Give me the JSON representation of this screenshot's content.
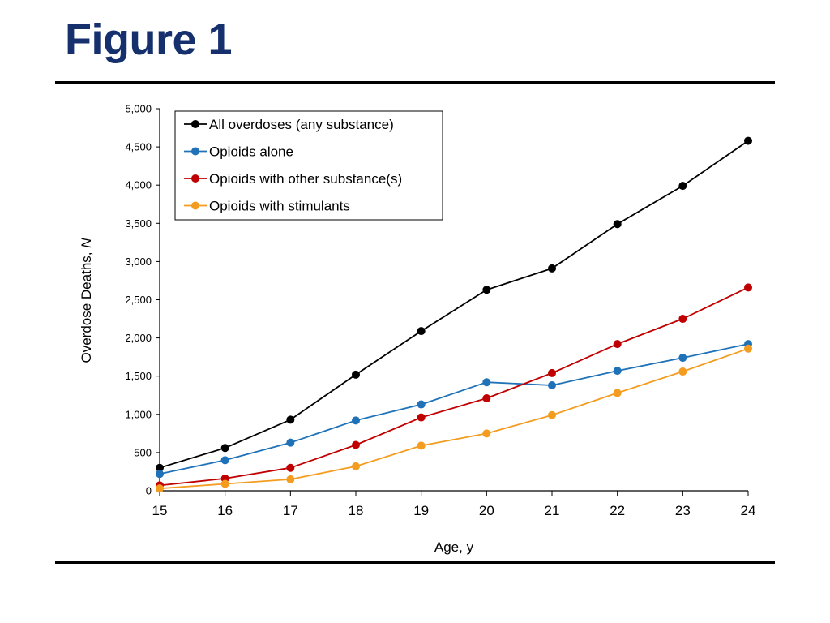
{
  "title": "Figure 1",
  "chart_data": {
    "type": "line",
    "title": "",
    "xlabel": "Age, y",
    "ylabel_prefix": "Overdose Deaths, ",
    "ylabel_italic": "N",
    "x": [
      15,
      16,
      17,
      18,
      19,
      20,
      21,
      22,
      23,
      24
    ],
    "x_tick_labels": [
      "15",
      "16",
      "17",
      "18",
      "19",
      "20",
      "21",
      "22",
      "23",
      "24"
    ],
    "ylim": [
      0,
      5000
    ],
    "y_ticks": [
      0,
      500,
      1000,
      1500,
      2000,
      2500,
      3000,
      3500,
      4000,
      4500,
      5000
    ],
    "y_tick_labels": [
      "0",
      "500",
      "1,000",
      "1,500",
      "2,000",
      "2,500",
      "3,000",
      "3,500",
      "4,000",
      "4,500",
      "5,000"
    ],
    "grid": false,
    "legend_position": "top-left",
    "series": [
      {
        "name": "All overdoses (any substance)",
        "color": "#000000",
        "values": [
          300,
          560,
          930,
          1520,
          2090,
          2630,
          2910,
          3490,
          3990,
          4580
        ]
      },
      {
        "name": "Opioids alone",
        "color": "#1f72b8",
        "values": [
          220,
          400,
          630,
          920,
          1130,
          1420,
          1380,
          1570,
          1740,
          1920
        ]
      },
      {
        "name": "Opioids with other substance(s)",
        "color": "#c00000",
        "values": [
          70,
          160,
          300,
          600,
          960,
          1210,
          1540,
          1920,
          2250,
          2660
        ]
      },
      {
        "name": "Opioids with stimulants",
        "color": "#f39c1f",
        "values": [
          30,
          90,
          150,
          320,
          590,
          750,
          990,
          1280,
          1560,
          1860
        ]
      }
    ]
  }
}
